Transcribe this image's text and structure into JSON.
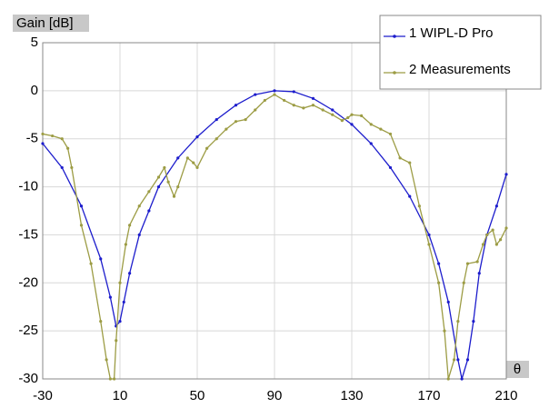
{
  "chart_data": {
    "type": "line",
    "y_label": "Gain [dB]",
    "x_label": "θ",
    "xlim": [
      -30,
      210
    ],
    "xticks": [
      -30,
      10,
      50,
      90,
      130,
      170,
      210
    ],
    "ylim": [
      -30,
      5
    ],
    "yticks": [
      5,
      0,
      -5,
      -10,
      -15,
      -20,
      -25,
      -30
    ],
    "grid": true,
    "legend": "upper right",
    "series": [
      {
        "name": "1 WIPL-D Pro",
        "color": "#1c1ccc",
        "x": [
          -30,
          -20,
          -10,
          0,
          5,
          8,
          10,
          12,
          15,
          20,
          25,
          30,
          40,
          50,
          60,
          70,
          80,
          90,
          100,
          110,
          120,
          130,
          140,
          150,
          160,
          170,
          175,
          180,
          185,
          187,
          190,
          193,
          196,
          200,
          205,
          210
        ],
        "values": [
          -5.5,
          -8,
          -12,
          -17.5,
          -21.5,
          -24.5,
          -24,
          -22,
          -19,
          -15,
          -12.5,
          -10,
          -7,
          -4.8,
          -3,
          -1.5,
          -0.4,
          0,
          -0.1,
          -0.8,
          -2,
          -3.5,
          -5.5,
          -8,
          -11,
          -15,
          -18,
          -22,
          -28,
          -30,
          -28,
          -24,
          -19,
          -15,
          -12,
          -8.7
        ]
      },
      {
        "name": "2 Measurements",
        "color": "#9c9c44",
        "x": [
          -30,
          -25,
          -20,
          -17,
          -15,
          -10,
          -5,
          0,
          3,
          5,
          7,
          8,
          10,
          13,
          15,
          20,
          25,
          30,
          33,
          35,
          38,
          40,
          45,
          48,
          50,
          55,
          60,
          65,
          70,
          75,
          80,
          85,
          90,
          95,
          100,
          105,
          110,
          115,
          120,
          125,
          128,
          130,
          135,
          140,
          145,
          150,
          155,
          160,
          165,
          170,
          175,
          178,
          180,
          183,
          185,
          188,
          190,
          195,
          198,
          200,
          203,
          205,
          207,
          210
        ],
        "values": [
          -4.5,
          -4.7,
          -5,
          -6,
          -8,
          -14,
          -18,
          -24,
          -28,
          -30,
          -30,
          -26,
          -20,
          -16,
          -14,
          -12,
          -10.5,
          -9,
          -8,
          -9.5,
          -11,
          -10,
          -7,
          -7.5,
          -8,
          -6,
          -5,
          -4,
          -3.2,
          -3,
          -2,
          -1,
          -0.4,
          -1,
          -1.5,
          -1.8,
          -1.5,
          -2,
          -2.5,
          -3.1,
          -2.8,
          -2.5,
          -2.6,
          -3.5,
          -4,
          -4.5,
          -7,
          -7.5,
          -12,
          -16,
          -20,
          -25,
          -30,
          -28,
          -24,
          -20,
          -18,
          -17.8,
          -16,
          -15,
          -14.5,
          -16,
          -15.5,
          -14.3
        ]
      }
    ]
  }
}
